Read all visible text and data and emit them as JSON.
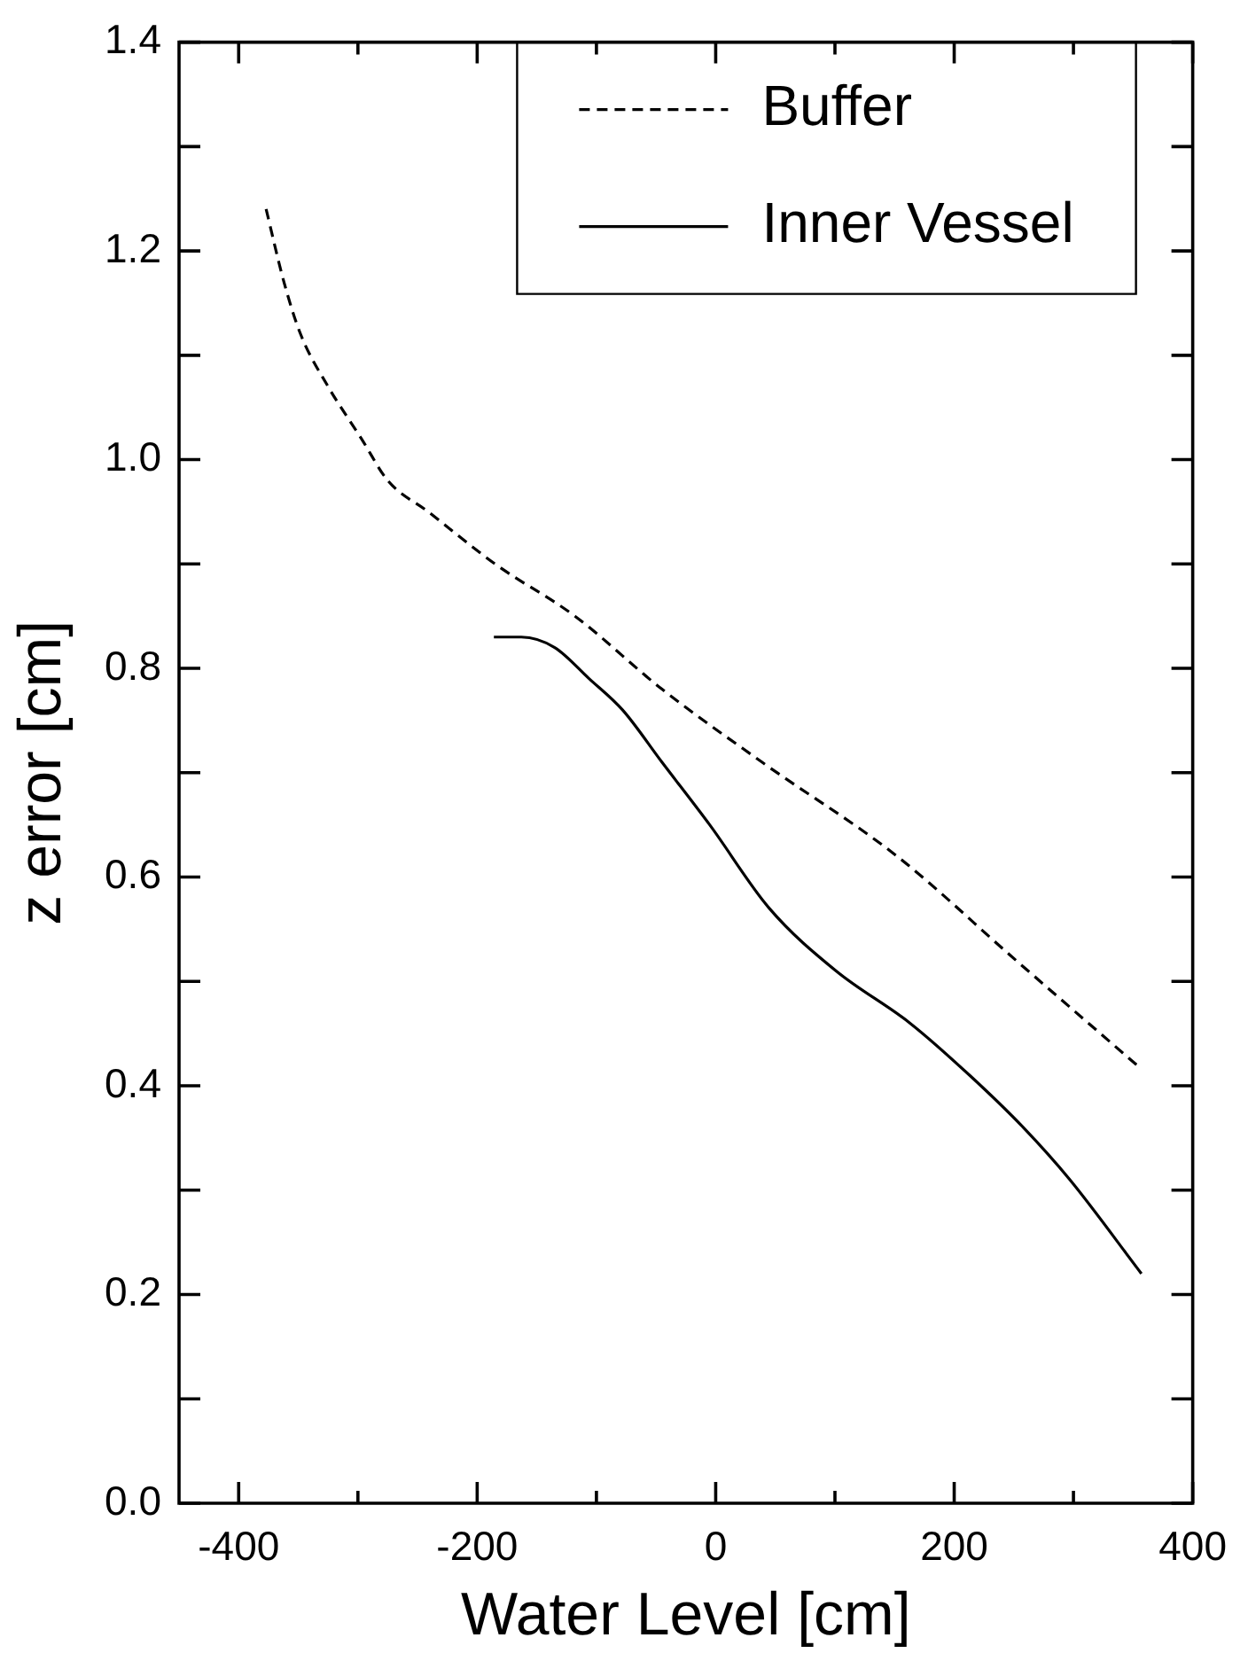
{
  "chart_data": {
    "type": "line",
    "xlabel": "Water Level [cm]",
    "ylabel": "z error [cm]",
    "xlim": [
      -450,
      400
    ],
    "xticks": [
      -400,
      {
        "value": -300,
        "label": null
      },
      -200,
      {
        "value": -100,
        "label": null
      },
      0,
      {
        "value": 100,
        "label": null
      },
      200,
      {
        "value": 300,
        "label": null
      },
      400
    ],
    "ylim": [
      0,
      1.4
    ],
    "yticks": [
      {
        "value": 0,
        "label": "0.0"
      },
      {
        "value": 0.1,
        "label": null
      },
      0.2,
      {
        "value": 0.3,
        "label": null
      },
      0.4,
      {
        "value": 0.5,
        "label": null
      },
      0.6,
      {
        "value": 0.7,
        "label": null
      },
      0.8,
      {
        "value": 0.9,
        "label": null
      },
      {
        "value": 1.0,
        "label": "1.0"
      },
      {
        "value": 1.1,
        "label": null
      },
      1.2,
      {
        "value": 1.3,
        "label": null
      },
      1.4
    ],
    "grid": false,
    "legend": "top right",
    "marker": "none",
    "series": [
      {
        "name": "Buffer",
        "color": "#000000",
        "line_style": "dashed",
        "x": [
          -377,
          -362,
          -348,
          -325,
          -297,
          -275,
          -241,
          -185,
          -118,
          -45,
          39,
          152,
          252,
          353
        ],
        "values": [
          1.24,
          1.17,
          1.12,
          1.07,
          1.02,
          0.98,
          0.95,
          0.9,
          0.85,
          0.78,
          0.71,
          0.62,
          0.52,
          0.42
        ]
      },
      {
        "name": "Inner Vessel",
        "color": "#000000",
        "line_style": "solid",
        "x": [
          -186,
          -163,
          -135,
          -106,
          -78,
          -45,
          -5,
          45,
          101,
          163,
          213,
          258,
          297,
          357
        ],
        "values": [
          0.83,
          0.83,
          0.82,
          0.79,
          0.76,
          0.71,
          0.65,
          0.57,
          0.51,
          0.46,
          0.41,
          0.36,
          0.31,
          0.22
        ]
      }
    ]
  }
}
